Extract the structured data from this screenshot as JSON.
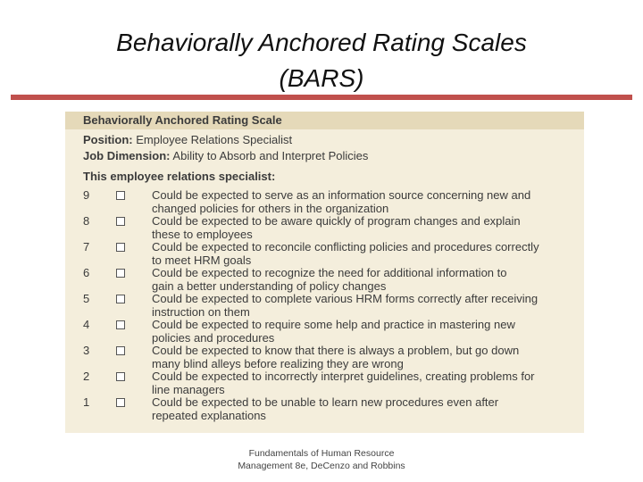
{
  "header": {
    "title": [
      "Behaviorally Anchored Rating Scales",
      "(BARS)"
    ]
  },
  "scale": {
    "title": "Behaviorally Anchored Rating Scale",
    "position": {
      "label": "Position:",
      "value": "Employee Relations Specialist"
    },
    "dimension": {
      "label": "Job Dimension:",
      "value": "Ability to Absorb and Interpret Policies"
    },
    "intro": "This employee relations specialist:",
    "items": [
      {
        "number": 9,
        "lines": [
          "Could be expected to serve as an information source concerning new and",
          "changed policies for others in the organization"
        ]
      },
      {
        "number": 8,
        "lines": [
          "Could be expected to be aware quickly of program changes and explain",
          "these to employees"
        ]
      },
      {
        "number": 7,
        "lines": [
          "Could be expected to reconcile conflicting policies and procedures correctly",
          "to meet HRM goals"
        ]
      },
      {
        "number": 6,
        "lines": [
          "Could be expected to recognize the need for additional information to",
          "gain a better understanding of policy changes"
        ]
      },
      {
        "number": 5,
        "lines": [
          "Could be expected to complete various HRM forms correctly after receiving",
          "instruction on them"
        ]
      },
      {
        "number": 4,
        "lines": [
          "Could be expected to require some help and practice in mastering new",
          "policies and procedures"
        ]
      },
      {
        "number": 3,
        "lines": [
          "Could be expected to know that there is always a problem, but go down",
          "many blind alleys before realizing they are wrong"
        ]
      },
      {
        "number": 2,
        "lines": [
          "Could be expected to incorrectly interpret guidelines, creating problems for",
          "line managers"
        ]
      },
      {
        "number": 1,
        "lines": [
          "Could be expected to be unable to learn new procedures even after",
          "repeated explanations"
        ]
      }
    ]
  },
  "footer": [
    "Fundamentals of Human Resource",
    "Management 8e, DeCenzo and Robbins"
  ]
}
